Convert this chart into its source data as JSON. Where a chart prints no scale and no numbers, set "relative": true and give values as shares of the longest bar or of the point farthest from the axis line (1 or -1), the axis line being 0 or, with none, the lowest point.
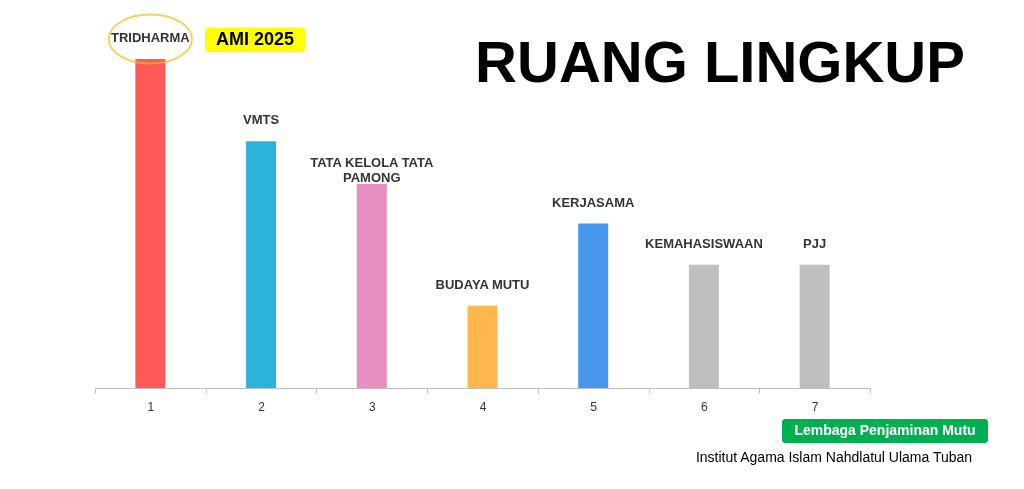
{
  "chart_data": {
    "type": "bar",
    "title": "RUANG LINGKUP",
    "relative": true,
    "grid": false,
    "categories": [
      "1",
      "2",
      "3",
      "4",
      "5",
      "6",
      "7"
    ],
    "values": [
      1,
      0.75,
      0.62,
      0.25,
      0.5,
      0.375,
      0.375
    ],
    "colors": [
      "#ff5a5a",
      "#2bb3d9",
      "#e68fc0",
      "#ffb74d",
      "#4796ee",
      "#bfbfbf",
      "#bfbfbf"
    ],
    "annotations": [
      {
        "text": "TRIDHARMA",
        "x": "1",
        "y": 1
      },
      {
        "text": "VMTS",
        "x": "2",
        "y": 0.75
      },
      {
        "text": "TATA KELOLA TATA PAMONG",
        "x": "3",
        "y": 0.62
      },
      {
        "text": "BUDAYA MUTU",
        "x": "4",
        "y": 0.25
      },
      {
        "text": "KERJASAMA",
        "x": "5",
        "y": 0.5
      },
      {
        "text": "KEMAHASISWAAN",
        "x": "6",
        "y": 0.375
      },
      {
        "text": "PJJ",
        "x": "7",
        "y": 0.375
      },
      "AMI 2025",
      "Lembaga Penjaminan Mutu",
      "Institut Agama Islam Nahdlatul Ulama Tuban"
    ]
  }
}
